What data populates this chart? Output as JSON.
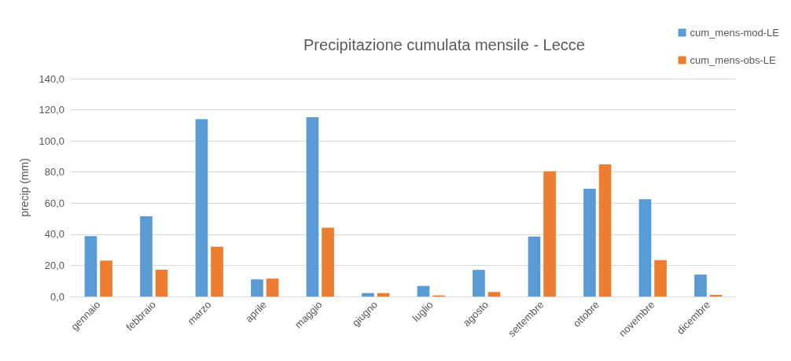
{
  "chart_data": {
    "type": "bar",
    "title": "Precipitazione cumulata mensile - Lecce",
    "ylabel": "precip (mm)",
    "categories": [
      "gennaio",
      "febbraio",
      "marzo",
      "aprile",
      "maggio",
      "giugno",
      "luglio",
      "agosto",
      "settembre",
      "ottobre",
      "novembre",
      "dicembre"
    ],
    "series": [
      {
        "name": "cum_mens-mod-LE",
        "color": "#5b9bd5",
        "values": [
          38.8,
          51.6,
          114.0,
          11.0,
          115.2,
          2.2,
          6.8,
          17.1,
          38.5,
          69.3,
          62.6,
          14.1
        ]
      },
      {
        "name": "cum_mens-obs-LE",
        "color": "#ed7d31",
        "values": [
          23.1,
          17.2,
          32.0,
          11.5,
          44.2,
          2.2,
          0.7,
          2.9,
          80.5,
          84.9,
          23.4,
          1.0
        ]
      }
    ],
    "ylim": [
      0,
      140
    ],
    "yticks": [
      {
        "value": 0,
        "label": "0,0"
      },
      {
        "value": 20,
        "label": "20,0"
      },
      {
        "value": 40,
        "label": "40,0"
      },
      {
        "value": 60,
        "label": "60,0"
      },
      {
        "value": 80,
        "label": "80,0"
      },
      {
        "value": 100,
        "label": "100,0"
      },
      {
        "value": 120,
        "label": "120,0"
      },
      {
        "value": 140,
        "label": "140,0"
      }
    ],
    "grid": "y",
    "legend": "top right"
  }
}
